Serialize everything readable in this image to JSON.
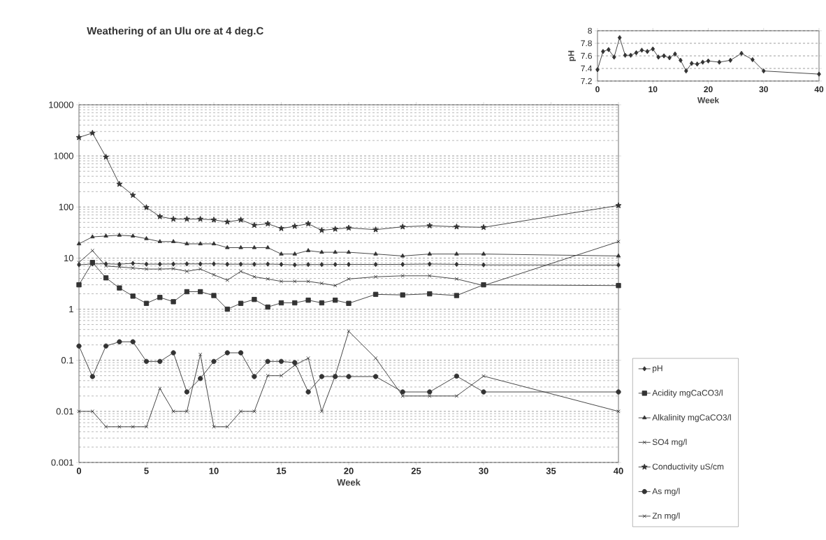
{
  "chart_data": [
    {
      "type": "line",
      "title": "Weathering of an Ulu ore at 4 deg.C",
      "xlabel": "Week",
      "x": [
        0,
        1,
        2,
        3,
        4,
        5,
        6,
        7,
        8,
        9,
        10,
        11,
        12,
        13,
        14,
        15,
        16,
        17,
        18,
        19,
        20,
        22,
        24,
        26,
        28,
        30,
        40
      ],
      "series": [
        {
          "name": "pH",
          "color": "#333333",
          "marker": "diamond",
          "values": [
            7.38,
            7.67,
            7.7,
            7.58,
            7.89,
            7.61,
            7.61,
            7.65,
            7.69,
            7.67,
            7.71,
            7.58,
            7.6,
            7.57,
            7.63,
            7.53,
            7.36,
            7.48,
            7.47,
            7.5,
            7.52,
            7.5,
            7.53,
            7.64,
            7.54,
            7.36,
            7.31
          ]
        },
        {
          "name": "Acidity mgCaCO3/l",
          "color": "#333333",
          "marker": "square",
          "values": [
            3,
            8.2,
            4.1,
            2.6,
            1.8,
            1.3,
            1.7,
            1.4,
            2.2,
            2.2,
            1.85,
            1,
            1.3,
            1.55,
            1.1,
            1.33,
            1.33,
            1.5,
            1.33,
            1.5,
            1.3,
            1.95,
            1.9,
            2,
            1.85,
            3,
            2.9
          ]
        },
        {
          "name": "Alkalinity mgCaCO3/l",
          "color": "#333333",
          "marker": "triangle",
          "values": [
            19,
            26,
            27,
            28,
            27,
            24,
            21,
            21,
            19,
            19,
            19,
            16,
            16,
            16,
            16,
            12,
            12,
            14,
            13,
            13,
            13,
            12,
            11,
            12,
            12,
            12,
            11
          ]
        },
        {
          "name": "SO4 mg/l",
          "color": "#333333",
          "marker": "cross",
          "values": [
            8.2,
            14,
            7,
            6.7,
            6.4,
            6.1,
            6.1,
            6.2,
            5.5,
            6.1,
            4.7,
            3.7,
            5.5,
            4.3,
            3.9,
            3.5,
            3.5,
            3.5,
            3.2,
            2.9,
            3.9,
            4.3,
            4.5,
            4.5,
            3.9,
            2.9,
            21
          ]
        },
        {
          "name": "Conductivity uS/cm",
          "color": "#333333",
          "marker": "star",
          "values": [
            2300,
            2800,
            950,
            280,
            170,
            98,
            65,
            58,
            58,
            58,
            56,
            51,
            56,
            44,
            47,
            38,
            42,
            47,
            35,
            37,
            39,
            36,
            41,
            43,
            41,
            40,
            107
          ]
        },
        {
          "name": "As mg/l",
          "color": "#333333",
          "marker": "circle",
          "values": [
            0.19,
            0.048,
            0.19,
            0.23,
            0.23,
            0.095,
            0.095,
            0.14,
            0.024,
            0.044,
            0.095,
            0.14,
            0.14,
            0.048,
            0.095,
            0.095,
            0.09,
            0.024,
            0.048,
            0.048,
            0.048,
            0.048,
            0.024,
            0.024,
            0.049,
            0.024,
            0.024
          ]
        },
        {
          "name": "Zn mg/l",
          "color": "#333333",
          "marker": "cross",
          "values": [
            0.01,
            0.01,
            0.005,
            0.005,
            0.005,
            0.005,
            0.028,
            0.01,
            0.01,
            0.13,
            0.005,
            0.005,
            0.01,
            0.01,
            0.05,
            0.05,
            0.08,
            0.11,
            0.01,
            0.05,
            0.37,
            0.11,
            0.02,
            0.02,
            0.02,
            0.049,
            0.01
          ]
        }
      ],
      "xlim": [
        0,
        40
      ],
      "xticks": [
        0,
        5,
        10,
        15,
        20,
        25,
        30,
        35,
        40
      ],
      "ylim": [
        0.001,
        10000
      ],
      "yticks": [
        0.001,
        0.01,
        0.1,
        1,
        10,
        100,
        1000,
        10000
      ],
      "log": "y",
      "grid": "y",
      "legend": "bottom right",
      "line_style": "solid"
    },
    {
      "type": "line",
      "xlabel": "Week",
      "ylabel": "pH",
      "x": [
        0,
        1,
        2,
        3,
        4,
        5,
        6,
        7,
        8,
        9,
        10,
        11,
        12,
        13,
        14,
        15,
        16,
        17,
        18,
        19,
        20,
        22,
        24,
        26,
        28,
        30,
        40
      ],
      "series": [
        {
          "color": "#333333",
          "values": [
            7.38,
            7.67,
            7.7,
            7.58,
            7.89,
            7.61,
            7.61,
            7.65,
            7.69,
            7.67,
            7.71,
            7.58,
            7.6,
            7.57,
            7.63,
            7.53,
            7.36,
            7.48,
            7.47,
            7.5,
            7.52,
            7.5,
            7.53,
            7.64,
            7.54,
            7.36,
            7.31
          ]
        }
      ],
      "xlim": [
        0,
        40
      ],
      "xticks": [
        0,
        10,
        20,
        30,
        40
      ],
      "ylim": [
        7.2,
        8
      ],
      "yticks": [
        7.2,
        7.4,
        7.6,
        7.8,
        8
      ],
      "grid": "y",
      "marker": "diamond",
      "line_style": "solid"
    }
  ]
}
